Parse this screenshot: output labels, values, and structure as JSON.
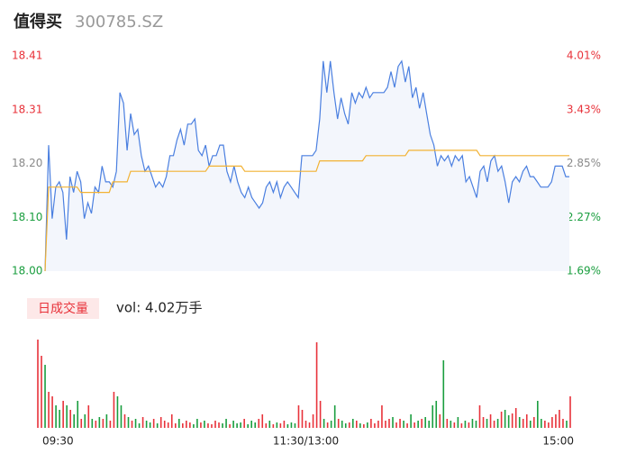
{
  "chart_data": [
    {
      "type": "line",
      "title": "值得买",
      "subtitle": "300785.SZ",
      "xlim": [
        0,
        147
      ],
      "ylim": [
        18.0,
        18.41
      ],
      "yticks": [
        {
          "value": 18.0,
          "label": "18.00"
        },
        {
          "value": 18.1025,
          "label": "18.10"
        },
        {
          "value": 18.205,
          "label": "18.20"
        },
        {
          "value": 18.3075,
          "label": "18.31"
        },
        18.41
      ],
      "y2lim": [
        1.69,
        4.01
      ],
      "y2ticks": [
        {
          "value": 1.69,
          "label": "1.69%"
        },
        {
          "value": 2.27,
          "label": "2.27%"
        },
        {
          "value": 2.85,
          "label": "2.85%"
        },
        {
          "value": 3.43,
          "label": "3.43%"
        },
        {
          "value": 4.01,
          "label": "4.01%"
        }
      ],
      "up_color": "#e8323a",
      "down_color": "#1a9e3f",
      "neutral_color": "#8a8a8a",
      "area_color": "#f3f6fc",
      "series": [
        {
          "color": "#4a7fe0",
          "values": [
            18.0,
            18.24,
            18.1,
            18.16,
            18.17,
            18.15,
            18.06,
            18.18,
            18.15,
            18.19,
            18.17,
            18.1,
            18.13,
            18.11,
            18.16,
            18.15,
            18.2,
            18.17,
            18.17,
            18.16,
            18.19,
            18.34,
            18.32,
            18.23,
            18.3,
            18.26,
            18.27,
            18.22,
            18.19,
            18.2,
            18.18,
            18.16,
            18.17,
            18.16,
            18.18,
            18.22,
            18.22,
            18.25,
            18.27,
            18.24,
            18.28,
            18.28,
            18.29,
            18.23,
            18.22,
            18.24,
            18.2,
            18.22,
            18.22,
            18.24,
            18.24,
            18.19,
            18.17,
            18.2,
            18.17,
            18.15,
            18.14,
            18.16,
            18.14,
            18.13,
            18.12,
            18.13,
            18.16,
            18.17,
            18.15,
            18.17,
            18.14,
            18.16,
            18.17,
            18.16,
            18.15,
            18.14,
            18.22,
            18.22,
            18.22,
            18.22,
            18.23,
            18.29,
            18.4,
            18.34,
            18.4,
            18.34,
            18.29,
            18.33,
            18.3,
            18.28,
            18.34,
            18.32,
            18.34,
            18.33,
            18.35,
            18.33,
            18.34,
            18.34,
            18.34,
            18.34,
            18.35,
            18.38,
            18.35,
            18.39,
            18.4,
            18.36,
            18.39,
            18.33,
            18.35,
            18.31,
            18.34,
            18.3,
            18.26,
            18.24,
            18.2,
            18.22,
            18.21,
            18.22,
            18.2,
            18.22,
            18.21,
            18.22,
            18.17,
            18.18,
            18.16,
            18.14,
            18.19,
            18.2,
            18.17,
            18.21,
            18.22,
            18.19,
            18.2,
            18.17,
            18.13,
            18.17,
            18.18,
            18.17,
            18.19,
            18.2,
            18.18,
            18.18,
            18.17,
            18.16,
            18.16,
            18.16,
            18.17,
            18.2,
            18.2,
            18.2,
            18.18,
            18.18
          ]
        },
        {
          "color": "#f2b233",
          "values": [
            18.0,
            18.16,
            18.16,
            18.16,
            18.16,
            18.16,
            18.16,
            18.16,
            18.16,
            18.16,
            18.15,
            18.15,
            18.15,
            18.15,
            18.15,
            18.15,
            18.15,
            18.15,
            18.15,
            18.17,
            18.17,
            18.17,
            18.17,
            18.17,
            18.19,
            18.19,
            18.19,
            18.19,
            18.19,
            18.19,
            18.19,
            18.19,
            18.19,
            18.19,
            18.19,
            18.19,
            18.19,
            18.19,
            18.19,
            18.19,
            18.19,
            18.19,
            18.19,
            18.19,
            18.19,
            18.19,
            18.2,
            18.2,
            18.2,
            18.2,
            18.2,
            18.2,
            18.2,
            18.2,
            18.2,
            18.2,
            18.19,
            18.19,
            18.19,
            18.19,
            18.19,
            18.19,
            18.19,
            18.19,
            18.19,
            18.19,
            18.19,
            18.19,
            18.19,
            18.19,
            18.19,
            18.19,
            18.19,
            18.19,
            18.19,
            18.19,
            18.19,
            18.21,
            18.21,
            18.21,
            18.21,
            18.21,
            18.21,
            18.21,
            18.21,
            18.21,
            18.21,
            18.21,
            18.21,
            18.21,
            18.22,
            18.22,
            18.22,
            18.22,
            18.22,
            18.22,
            18.22,
            18.22,
            18.22,
            18.22,
            18.22,
            18.22,
            18.23,
            18.23,
            18.23,
            18.23,
            18.23,
            18.23,
            18.23,
            18.23,
            18.23,
            18.23,
            18.23,
            18.23,
            18.23,
            18.23,
            18.23,
            18.23,
            18.23,
            18.23,
            18.23,
            18.23,
            18.22,
            18.22,
            18.22,
            18.22,
            18.22,
            18.22,
            18.22,
            18.22,
            18.22,
            18.22,
            18.22,
            18.22,
            18.22,
            18.22,
            18.22,
            18.22,
            18.22,
            18.22,
            18.22,
            18.22,
            18.22,
            18.22,
            18.22,
            18.22,
            18.22,
            18.22
          ]
        }
      ]
    },
    {
      "type": "bar",
      "title": "日成交量",
      "subtitle": "vol: 4.02万手",
      "label_bg": "#fde8e8",
      "xlim": [
        0,
        147
      ],
      "xticks": [
        {
          "value": 0,
          "label": "09:30"
        },
        {
          "value": 74,
          "label": "11:30/13:00"
        },
        {
          "value": 147,
          "label": "15:00"
        }
      ],
      "values": [
        98,
        80,
        70,
        40,
        35,
        25,
        20,
        30,
        25,
        20,
        15,
        30,
        10,
        15,
        25,
        10,
        8,
        12,
        10,
        15,
        8,
        40,
        35,
        25,
        15,
        12,
        8,
        10,
        5,
        12,
        8,
        6,
        10,
        5,
        12,
        8,
        6,
        15,
        5,
        10,
        5,
        8,
        6,
        4,
        10,
        6,
        8,
        5,
        4,
        8,
        6,
        5,
        10,
        4,
        8,
        5,
        6,
        10,
        4,
        8,
        6,
        10,
        15,
        5,
        8,
        4,
        6,
        5,
        8,
        4,
        6,
        5,
        25,
        20,
        8,
        6,
        15,
        95,
        30,
        10,
        6,
        8,
        25,
        10,
        8,
        5,
        6,
        10,
        8,
        5,
        4,
        6,
        10,
        5,
        8,
        25,
        8,
        10,
        12,
        6,
        10,
        8,
        5,
        15,
        6,
        8,
        10,
        12,
        8,
        25,
        30,
        15,
        75,
        10,
        8,
        6,
        12,
        5,
        8,
        6,
        10,
        8,
        25,
        12,
        10,
        15,
        8,
        10,
        18,
        20,
        14,
        16,
        22,
        12,
        10,
        15,
        8,
        12,
        30,
        10,
        8,
        6,
        12,
        15,
        20,
        10,
        8,
        35
      ]
    }
  ]
}
